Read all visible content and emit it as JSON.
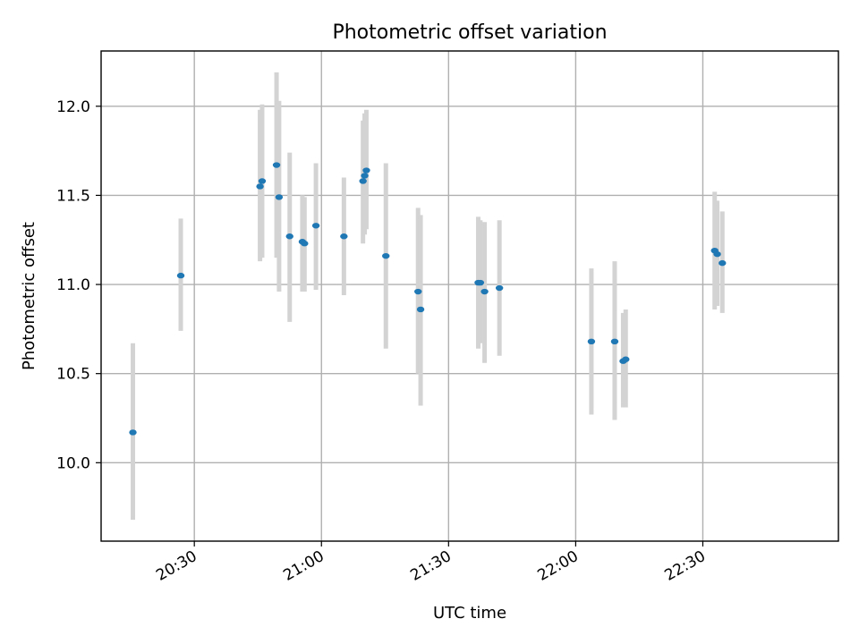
{
  "chart_data": {
    "type": "scatter",
    "title": "Photometric offset variation",
    "xlabel": "UTC time",
    "ylabel": "Photometric offset",
    "x_is_time": true,
    "x_unit": "minutes after 20:00 UTC",
    "xlim": [
      "20:08",
      "23:02"
    ],
    "ylim": [
      9.56,
      12.31
    ],
    "x_ticks": [
      "20:30",
      "21:00",
      "21:30",
      "22:00",
      "22:30"
    ],
    "y_ticks": [
      "10.0",
      "10.5",
      "11.0",
      "11.5",
      "12.0"
    ],
    "y_tick_values": [
      10.0,
      10.5,
      11.0,
      11.5,
      12.0
    ],
    "grid": true,
    "legend": "none",
    "colors": {
      "point": "#1f77b4",
      "error_bar": "#d3d3d3",
      "grid": "#b0b0b0"
    },
    "series": [
      {
        "points": [
          {
            "t": "20:15.5",
            "y": 10.17,
            "lo": 9.68,
            "hi": 10.67
          },
          {
            "t": "20:26.8",
            "y": 11.05,
            "lo": 10.74,
            "hi": 11.37
          },
          {
            "t": "20:45.5",
            "y": 11.55,
            "lo": 11.13,
            "hi": 11.98
          },
          {
            "t": "20:46.0",
            "y": 11.58,
            "lo": 11.15,
            "hi": 12.01
          },
          {
            "t": "20:49.4",
            "y": 11.67,
            "lo": 11.15,
            "hi": 12.19
          },
          {
            "t": "20:50.0",
            "y": 11.49,
            "lo": 10.96,
            "hi": 12.03
          },
          {
            "t": "20:52.5",
            "y": 11.27,
            "lo": 10.79,
            "hi": 11.74
          },
          {
            "t": "20:55.5",
            "y": 11.24,
            "lo": 10.96,
            "hi": 11.5
          },
          {
            "t": "20:56.0",
            "y": 11.23,
            "lo": 10.96,
            "hi": 11.49
          },
          {
            "t": "20:58.7",
            "y": 11.33,
            "lo": 10.97,
            "hi": 11.68
          },
          {
            "t": "21:05.3",
            "y": 11.27,
            "lo": 10.94,
            "hi": 11.6
          },
          {
            "t": "21:09.8",
            "y": 11.58,
            "lo": 11.23,
            "hi": 11.92
          },
          {
            "t": "21:10.2",
            "y": 11.61,
            "lo": 11.28,
            "hi": 11.96
          },
          {
            "t": "21:10.6",
            "y": 11.64,
            "lo": 11.31,
            "hi": 11.98
          },
          {
            "t": "21:15.2",
            "y": 11.16,
            "lo": 10.64,
            "hi": 11.68
          },
          {
            "t": "21:22.8",
            "y": 10.96,
            "lo": 10.5,
            "hi": 11.43
          },
          {
            "t": "21:23.4",
            "y": 10.86,
            "lo": 10.32,
            "hi": 11.39
          },
          {
            "t": "21:37.0",
            "y": 11.01,
            "lo": 10.64,
            "hi": 11.38
          },
          {
            "t": "21:37.5",
            "y": 11.01,
            "lo": 10.67,
            "hi": 11.36
          },
          {
            "t": "21:38.5",
            "y": 10.96,
            "lo": 10.56,
            "hi": 11.35
          },
          {
            "t": "21:42.0",
            "y": 10.98,
            "lo": 10.6,
            "hi": 11.36
          },
          {
            "t": "22:03.7",
            "y": 10.68,
            "lo": 10.27,
            "hi": 11.09
          },
          {
            "t": "22:09.2",
            "y": 10.68,
            "lo": 10.24,
            "hi": 11.13
          },
          {
            "t": "22:11.2",
            "y": 10.57,
            "lo": 10.31,
            "hi": 10.84
          },
          {
            "t": "22:11.8",
            "y": 10.58,
            "lo": 10.31,
            "hi": 10.86
          },
          {
            "t": "22:32.8",
            "y": 11.19,
            "lo": 10.86,
            "hi": 11.52
          },
          {
            "t": "22:33.4",
            "y": 11.17,
            "lo": 10.88,
            "hi": 11.47
          },
          {
            "t": "22:34.6",
            "y": 11.12,
            "lo": 10.84,
            "hi": 11.41
          }
        ]
      }
    ]
  }
}
